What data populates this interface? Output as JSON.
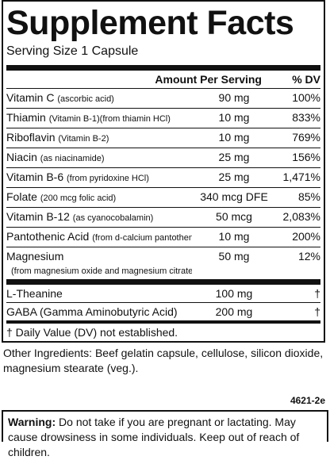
{
  "label": {
    "title": "Supplement Facts",
    "serving_size": "Serving Size 1 Capsule",
    "header": [
      "Amount Per Serving",
      "% DV"
    ],
    "sections": [
      {
        "rows": [
          {
            "name": "Vitamin C",
            "sub": "(ascorbic acid)",
            "amount": "90 mg",
            "dv": "100%"
          },
          {
            "name": "Thiamin",
            "sub": "(Vitamin B-1)(from thiamin HCl)",
            "amount": "10 mg",
            "dv": "833%"
          },
          {
            "name": "Riboflavin",
            "sub": "(Vitamin B-2)",
            "amount": "10 mg",
            "dv": "769%"
          },
          {
            "name": "Niacin",
            "sub": "(as niacinamide)",
            "amount": "25 mg",
            "dv": "156%"
          },
          {
            "name": "Vitamin B-6",
            "sub": "(from pyridoxine HCl)",
            "amount": "25 mg",
            "dv": "1,471%"
          },
          {
            "name": "Folate",
            "sub": "(200 mcg folic acid)",
            "amount": "340 mcg DFE",
            "dv": "85%"
          },
          {
            "name": "Vitamin B-12",
            "sub": "(as cyanocobalamin)",
            "amount": "50 mcg",
            "dv": "2,083%"
          },
          {
            "name": "Pantothenic Acid",
            "sub": "(from d-calcium pantothenate)",
            "amount": "10 mg",
            "dv": "200%"
          },
          {
            "name": "Magnesium",
            "note": "(from magnesium oxide and magnesium citrate)",
            "amount": "50 mg",
            "dv": "12%"
          }
        ]
      },
      {
        "rows": [
          {
            "name": "L-Theanine",
            "amount": "100 mg",
            "dv": "†"
          },
          {
            "name": "GABA (Gamma Aminobutyric Acid)",
            "amount": "200 mg",
            "dv": "†"
          }
        ]
      }
    ],
    "footnote": "† Daily Value (DV) not established."
  },
  "other_ingredients": "Other Ingredients:  Beef gelatin capsule, cellulose, silicon dioxide, magnesium stearate (veg.).",
  "code": "4621-2e",
  "warning": {
    "label": "Warning:",
    "text": "Do not take if you are pregnant or lactating. May cause drowsiness in some individuals.  Keep out of reach of children."
  }
}
